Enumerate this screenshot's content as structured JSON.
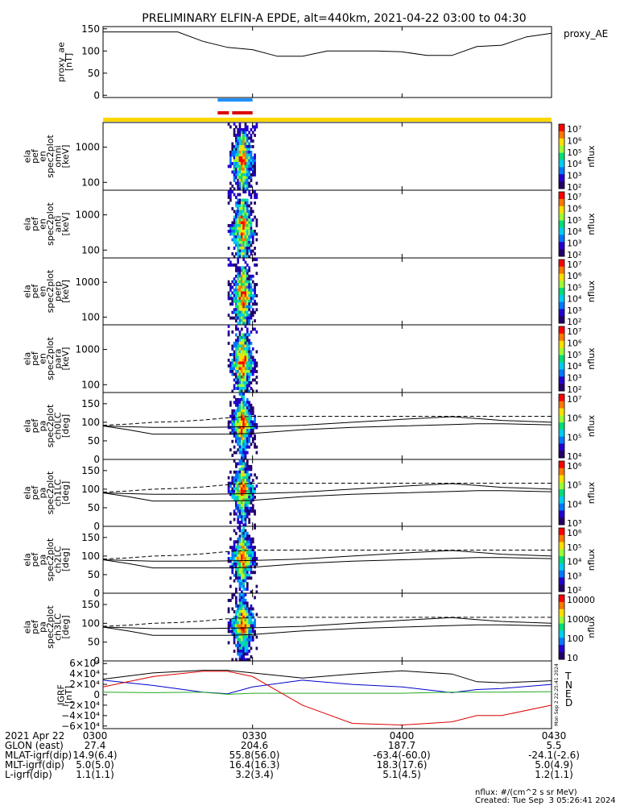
{
  "title": "PRELIMINARY ELFIN-A EPDE, alt=440km, 2021-04-22 03:00 to 04:30",
  "colors": {
    "bar_blue": "#1e90ff",
    "bar_red": "#dd0000",
    "bar_yellow": "#ffd700",
    "igrf_T": "#000000",
    "igrf_N": "#0000cc",
    "igrf_E": "#22aa22",
    "igrf_D": "#dd0000"
  },
  "chart_data": [
    {
      "id": "proxy_ae",
      "type": "line",
      "ylabel_lines": [
        "proxy_ae",
        "[nT]"
      ],
      "legend": "proxy_AE",
      "ylim": [
        -5,
        155
      ],
      "yticks": [
        "150",
        "100",
        "50",
        "0"
      ],
      "x": [
        "03:00",
        "03:05",
        "03:10",
        "03:15",
        "03:20",
        "03:25",
        "03:30",
        "03:35",
        "03:40",
        "03:45",
        "03:50",
        "03:55",
        "04:00",
        "04:05",
        "04:10",
        "04:15",
        "04:20",
        "04:25",
        "04:30"
      ],
      "values": [
        143,
        143,
        143,
        143,
        122,
        108,
        103,
        88,
        88,
        100,
        100,
        100,
        98,
        90,
        90,
        110,
        113,
        132,
        140
      ]
    },
    {
      "id": "ch_en_omni",
      "type": "heatmap",
      "ylabel_lines": [
        "ela",
        "pef",
        "en",
        "spec2plot",
        "omni",
        "[keV]"
      ],
      "yscale": "log",
      "ylim": [
        60,
        5000
      ],
      "yticks": [
        "1000",
        "100"
      ],
      "zlabel": "nflux",
      "ztick_labels": [
        "10⁷",
        "10⁶",
        "10⁵",
        "10⁴",
        "10³",
        "10²"
      ]
    },
    {
      "id": "ch_en_anti",
      "type": "heatmap",
      "ylabel_lines": [
        "ela",
        "pef",
        "en",
        "spec2plot",
        "anti",
        "[keV]"
      ],
      "yscale": "log",
      "ylim": [
        60,
        5000
      ],
      "yticks": [
        "1000",
        "100"
      ],
      "zlabel": "nflux",
      "ztick_labels": [
        "10⁷",
        "10⁶",
        "10⁵",
        "10⁴",
        "10³",
        "10²"
      ]
    },
    {
      "id": "ch_en_perp",
      "type": "heatmap",
      "ylabel_lines": [
        "ela",
        "pef",
        "en",
        "spec2plot",
        "perp",
        "[keV]"
      ],
      "yscale": "log",
      "ylim": [
        60,
        5000
      ],
      "yticks": [
        "1000",
        "100"
      ],
      "zlabel": "nflux",
      "ztick_labels": [
        "10⁷",
        "10⁶",
        "10⁵",
        "10⁴",
        "10³",
        "10²"
      ]
    },
    {
      "id": "ch_en_para",
      "type": "heatmap",
      "ylabel_lines": [
        "ela",
        "pef",
        "en",
        "spec2plot",
        "para",
        "[keV]"
      ],
      "yscale": "log",
      "ylim": [
        60,
        5000
      ],
      "yticks": [
        "1000",
        "100"
      ],
      "zlabel": "nflux",
      "ztick_labels": [
        "10⁷",
        "10⁶",
        "10⁵",
        "10⁴",
        "10³",
        "10²"
      ]
    },
    {
      "id": "ch_pa_0",
      "type": "heatmap",
      "ylabel_lines": [
        "ela",
        "pef",
        "pa",
        "spec2plot",
        "ch0LC",
        "[deg]"
      ],
      "ylim": [
        0,
        180
      ],
      "yticks": [
        "150",
        "100",
        "50",
        "0"
      ],
      "zlabel": "nflux",
      "ztick_labels": [
        "10⁷",
        "10⁶",
        "10⁵",
        "10⁴"
      ]
    },
    {
      "id": "ch_pa_1",
      "type": "heatmap",
      "ylabel_lines": [
        "ela",
        "pef",
        "pa",
        "spec2plot",
        "ch1LC",
        "[deg]"
      ],
      "ylim": [
        0,
        180
      ],
      "yticks": [
        "150",
        "100",
        "50",
        "0"
      ],
      "zlabel": "nflux",
      "ztick_labels": [
        "10⁶",
        "10⁵",
        "10⁴",
        "10³"
      ]
    },
    {
      "id": "ch_pa_2",
      "type": "heatmap",
      "ylabel_lines": [
        "ela",
        "pef",
        "pa",
        "spec2plot",
        "ch2LC",
        "[deg]"
      ],
      "ylim": [
        0,
        180
      ],
      "yticks": [
        "150",
        "100",
        "50",
        "0"
      ],
      "zlabel": "nflux",
      "ztick_labels": [
        "10⁶",
        "10⁵",
        "10⁴",
        "10³",
        "10²"
      ]
    },
    {
      "id": "ch_pa_3",
      "type": "heatmap",
      "ylabel_lines": [
        "ela",
        "pef",
        "pa",
        "spec2plot",
        "ch3LC",
        "[deg]"
      ],
      "ylim": [
        0,
        180
      ],
      "yticks": [
        "150",
        "100",
        "50",
        "0"
      ],
      "zlabel": "nflux",
      "ztick_labels": [
        "10000",
        "1000",
        "100",
        "10"
      ]
    },
    {
      "id": "igrf",
      "type": "line",
      "ylabel_lines": [
        "IGRF",
        "[nT]"
      ],
      "ylim": [
        -65000,
        65000
      ],
      "yticks": [
        "6×10⁴",
        "4×10⁴",
        "2×10⁴",
        "0",
        "−2×10⁴",
        "−4×10⁴",
        "−6×10⁴"
      ],
      "x": [
        "03:00",
        "03:10",
        "03:20",
        "03:25",
        "03:30",
        "03:40",
        "03:50",
        "04:00",
        "04:10",
        "04:15",
        "04:20",
        "04:30"
      ],
      "series": [
        {
          "name": "T",
          "values": [
            30000,
            42000,
            47000,
            47000,
            42000,
            32000,
            40000,
            46000,
            40000,
            25000,
            23000,
            27000
          ]
        },
        {
          "name": "N",
          "values": [
            28000,
            18000,
            5000,
            2000,
            15000,
            28000,
            20000,
            15000,
            4000,
            10000,
            12000,
            20000
          ]
        },
        {
          "name": "E",
          "values": [
            5000,
            4000,
            5000,
            1000,
            3000,
            3000,
            3000,
            3000,
            5000,
            5000,
            5000,
            6000
          ]
        },
        {
          "name": "D",
          "values": [
            15000,
            35000,
            45000,
            45000,
            35000,
            -20000,
            -55000,
            -58000,
            -52000,
            -40000,
            -40000,
            -20000
          ]
        }
      ],
      "side_note": "Mon Sep  2 22:25:41 2024"
    }
  ],
  "pa_curves": {
    "x": [
      "03:00",
      "03:05",
      "03:10",
      "03:15",
      "03:20",
      "03:25",
      "03:30",
      "03:40",
      "03:50",
      "04:00",
      "04:10",
      "04:15",
      "04:20",
      "04:30"
    ],
    "solid_upper": [
      90,
      88,
      86,
      86,
      86,
      87,
      88,
      92,
      100,
      108,
      115,
      110,
      105,
      100
    ],
    "solid_lower": [
      90,
      80,
      68,
      68,
      68,
      68,
      70,
      80,
      86,
      90,
      94,
      96,
      96,
      93
    ],
    "dashed_upper": [
      92,
      95,
      100,
      102,
      106,
      112,
      116,
      116,
      116,
      116,
      116,
      116,
      116,
      116
    ]
  },
  "footer": {
    "rows": [
      {
        "label": "2021 Apr 22",
        "values": [
          "0300",
          "0330",
          "0400",
          "0430"
        ]
      },
      {
        "label": "GLON (east)",
        "values": [
          "27.4",
          "204.6",
          "187.7",
          "5.5"
        ]
      },
      {
        "label": "MLAT-igrf(dip)",
        "values": [
          "14.9(6.4)",
          "55.8(56.0)",
          "-63.4(-60.0)",
          "-24.1(-2.6)"
        ]
      },
      {
        "label": "MLT-igrf(dip)",
        "values": [
          "5.0(5.0)",
          "16.4(16.3)",
          "18.3(17.6)",
          "5.0(4.9)"
        ]
      },
      {
        "label": "L-igrf(dip)",
        "values": [
          "1.1(1.1)",
          "3.2(3.4)",
          "5.1(4.5)",
          "1.2(1.1)"
        ]
      }
    ],
    "units": "nflux: #/(cm^2 s sr MeV)",
    "created": "Created: Tue Sep  3 05:26:41 2024"
  }
}
